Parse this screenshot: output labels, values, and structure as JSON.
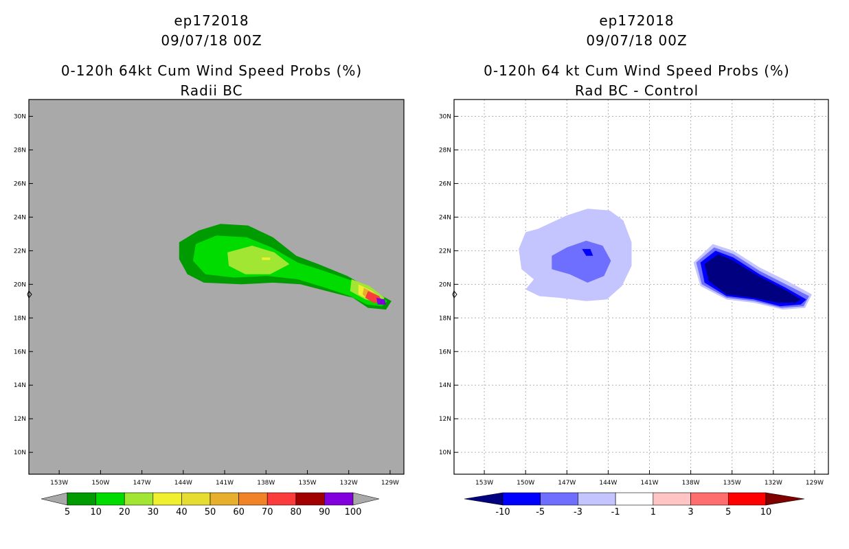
{
  "left": {
    "storm": "ep172018",
    "datetime": "09/07/18 00Z",
    "title": "0-120h 64kt Cum Wind Speed Probs (%)",
    "subtitle": "Radii BC"
  },
  "right": {
    "storm": "ep172018",
    "datetime": "09/07/18 00Z",
    "title": "0-120h 64 kt Cum Wind Speed Probs (%)",
    "subtitle": "Rad BC - Control"
  },
  "chart_data": [
    {
      "type": "heatmap",
      "name": "Radii BC",
      "x_ticks": [
        "153W",
        "150W",
        "147W",
        "144W",
        "141W",
        "138W",
        "135W",
        "132W",
        "129W"
      ],
      "x_tick_values": [
        -153,
        -150,
        -147,
        -144,
        -141,
        -138,
        -135,
        -132,
        -129
      ],
      "y_ticks": [
        "30N",
        "28N",
        "26N",
        "24N",
        "22N",
        "20N",
        "18N",
        "16N",
        "14N",
        "12N",
        "10N"
      ],
      "y_tick_values": [
        30,
        28,
        26,
        24,
        22,
        20,
        18,
        16,
        14,
        12,
        10
      ],
      "xlim": [
        -155.2,
        -128.0
      ],
      "ylim": [
        8.7,
        31.0
      ],
      "grid": false,
      "background": "#a9a9a9",
      "legend": {
        "labels": [
          "5",
          "10",
          "20",
          "30",
          "40",
          "50",
          "60",
          "70",
          "80",
          "90",
          "100"
        ],
        "colors": [
          "#009b00",
          "#00dc00",
          "#a0e632",
          "#f0f030",
          "#e6dc32",
          "#e6af2d",
          "#f08228",
          "#fa3c3c",
          "#a00000",
          "#8200dc"
        ]
      },
      "contours": [
        {
          "level": "5-10",
          "color": "#009b00",
          "points": [
            [
              -144.3,
              22.5
            ],
            [
              -142.9,
              23.2
            ],
            [
              -141.3,
              23.6
            ],
            [
              -139.3,
              23.5
            ],
            [
              -137.5,
              22.8
            ],
            [
              -135.8,
              21.7
            ],
            [
              -134.2,
              21.2
            ],
            [
              -132.1,
              20.5
            ],
            [
              -130.4,
              19.7
            ],
            [
              -128.9,
              19.0
            ],
            [
              -129.3,
              18.5
            ],
            [
              -130.6,
              18.6
            ],
            [
              -131.7,
              19.2
            ],
            [
              -133.6,
              19.6
            ],
            [
              -135.5,
              20.0
            ],
            [
              -137.5,
              20.1
            ],
            [
              -139.8,
              20.0
            ],
            [
              -142.5,
              20.1
            ],
            [
              -143.7,
              20.6
            ],
            [
              -144.3,
              21.5
            ]
          ]
        },
        {
          "level": "10-20",
          "color": "#00dc00",
          "points": [
            [
              -143.1,
              22.4
            ],
            [
              -141.6,
              22.9
            ],
            [
              -139.4,
              22.8
            ],
            [
              -137.6,
              22.2
            ],
            [
              -135.7,
              21.3
            ],
            [
              -133.8,
              20.8
            ],
            [
              -131.7,
              20.2
            ],
            [
              -130.2,
              19.5
            ],
            [
              -129.2,
              19.0
            ],
            [
              -129.6,
              18.7
            ],
            [
              -130.7,
              18.8
            ],
            [
              -131.9,
              19.3
            ],
            [
              -133.7,
              19.8
            ],
            [
              -135.7,
              20.3
            ],
            [
              -137.9,
              20.5
            ],
            [
              -140.3,
              20.4
            ],
            [
              -142.4,
              20.6
            ],
            [
              -143.3,
              21.4
            ]
          ]
        },
        {
          "level": "20-30",
          "color": "#a0e632",
          "points": [
            [
              -140.8,
              21.9
            ],
            [
              -139.0,
              22.3
            ],
            [
              -137.4,
              21.9
            ],
            [
              -136.3,
              21.2
            ],
            [
              -137.7,
              20.6
            ],
            [
              -139.5,
              20.6
            ],
            [
              -140.7,
              21.1
            ]
          ]
        },
        {
          "level": "20-30",
          "color": "#a0e632",
          "points": [
            [
              -131.8,
              20.3
            ],
            [
              -130.5,
              19.9
            ],
            [
              -129.4,
              19.2
            ],
            [
              -129.7,
              18.9
            ],
            [
              -130.8,
              19.1
            ],
            [
              -131.9,
              19.6
            ]
          ]
        },
        {
          "level": "30-40",
          "color": "#f0f030",
          "points": [
            [
              -131.3,
              20.0
            ],
            [
              -130.3,
              19.6
            ],
            [
              -129.6,
              19.1
            ],
            [
              -130.3,
              19.0
            ],
            [
              -131.3,
              19.4
            ]
          ]
        },
        {
          "level": "50-60",
          "color": "#e6af2d",
          "points": [
            [
              -130.9,
              19.8
            ],
            [
              -130.0,
              19.4
            ],
            [
              -129.8,
              19.0
            ],
            [
              -130.6,
              19.1
            ],
            [
              -131.0,
              19.4
            ]
          ]
        },
        {
          "level": "70-80",
          "color": "#fa3c3c",
          "points": [
            [
              -130.6,
              19.6
            ],
            [
              -129.8,
              19.3
            ],
            [
              -129.5,
              18.9
            ],
            [
              -130.2,
              18.9
            ],
            [
              -130.8,
              19.2
            ]
          ]
        },
        {
          "level": "90-100",
          "color": "#8200dc",
          "points": [
            [
              -130.0,
              19.2
            ],
            [
              -129.4,
              19.1
            ],
            [
              -129.3,
              18.8
            ],
            [
              -129.9,
              18.8
            ]
          ]
        },
        {
          "level": "30-40",
          "color": "#f0f030",
          "points": [
            [
              -138.3,
              21.6
            ],
            [
              -137.7,
              21.6
            ],
            [
              -137.7,
              21.45
            ],
            [
              -138.3,
              21.45
            ]
          ]
        }
      ]
    },
    {
      "type": "heatmap",
      "name": "Rad BC - Control",
      "x_ticks": [
        "153W",
        "150W",
        "147W",
        "144W",
        "141W",
        "138W",
        "135W",
        "132W",
        "129W"
      ],
      "x_tick_values": [
        -153,
        -150,
        -147,
        -144,
        -141,
        -138,
        -135,
        -132,
        -129
      ],
      "y_ticks": [
        "30N",
        "28N",
        "26N",
        "24N",
        "22N",
        "20N",
        "18N",
        "16N",
        "14N",
        "12N",
        "10N"
      ],
      "y_tick_values": [
        30,
        28,
        26,
        24,
        22,
        20,
        18,
        16,
        14,
        12,
        10
      ],
      "xlim": [
        -155.2,
        -128.0
      ],
      "ylim": [
        8.7,
        31.0
      ],
      "grid": true,
      "background": "#ffffff",
      "legend": {
        "labels": [
          "-10",
          "-5",
          "-3",
          "-1",
          "1",
          "3",
          "5",
          "10"
        ],
        "colors": [
          "#000080",
          "#0000ff",
          "#6e6eff",
          "#c4c4ff",
          "#ffffff",
          "#ffc4c4",
          "#ff6e6e",
          "#ff0000",
          "#800000"
        ]
      },
      "contours": [
        {
          "level": "-3 to -1",
          "color": "#c4c4ff",
          "points": [
            [
              -149.1,
              23.3
            ],
            [
              -147.0,
              24.1
            ],
            [
              -145.5,
              24.5
            ],
            [
              -143.9,
              24.4
            ],
            [
              -142.9,
              23.8
            ],
            [
              -142.3,
              22.5
            ],
            [
              -142.3,
              21.1
            ],
            [
              -143.0,
              19.9
            ],
            [
              -144.1,
              19.1
            ],
            [
              -145.6,
              19.0
            ],
            [
              -147.6,
              19.2
            ],
            [
              -149.0,
              19.3
            ],
            [
              -150.0,
              19.7
            ],
            [
              -149.4,
              20.3
            ],
            [
              -150.3,
              20.9
            ],
            [
              -150.5,
              22.1
            ],
            [
              -150.0,
              23.1
            ]
          ]
        },
        {
          "level": "-5 to -3",
          "color": "#6e6eff",
          "points": [
            [
              -148.1,
              21.7
            ],
            [
              -147.0,
              22.2
            ],
            [
              -145.6,
              22.6
            ],
            [
              -144.4,
              22.3
            ],
            [
              -143.8,
              21.4
            ],
            [
              -144.3,
              20.5
            ],
            [
              -145.5,
              20.1
            ],
            [
              -146.8,
              20.6
            ],
            [
              -148.1,
              20.9
            ]
          ]
        },
        {
          "level": "-10 to -5",
          "color": "#0000ff",
          "points": [
            [
              -145.9,
              22.1
            ],
            [
              -145.3,
              22.1
            ],
            [
              -145.1,
              21.7
            ],
            [
              -145.6,
              21.7
            ]
          ]
        },
        {
          "level": "-3 to -1",
          "color": "#c4c4ff",
          "points": [
            [
              -137.8,
              21.3
            ],
            [
              -136.4,
              22.4
            ],
            [
              -134.9,
              22.0
            ],
            [
              -133.0,
              21.0
            ],
            [
              -131.0,
              20.2
            ],
            [
              -129.2,
              19.4
            ],
            [
              -129.7,
              18.6
            ],
            [
              -131.3,
              18.5
            ],
            [
              -133.4,
              18.9
            ],
            [
              -135.4,
              19.1
            ],
            [
              -137.3,
              19.9
            ]
          ]
        },
        {
          "level": "-5 to -3",
          "color": "#6e6eff",
          "points": [
            [
              -137.6,
              21.3
            ],
            [
              -136.3,
              22.2
            ],
            [
              -134.9,
              21.8
            ],
            [
              -133.0,
              20.8
            ],
            [
              -131.1,
              20.0
            ],
            [
              -129.4,
              19.3
            ],
            [
              -129.8,
              18.7
            ],
            [
              -131.4,
              18.6
            ],
            [
              -133.4,
              19.0
            ],
            [
              -135.4,
              19.2
            ],
            [
              -137.2,
              20.0
            ]
          ]
        },
        {
          "level": "-10 to -5",
          "color": "#0000ff",
          "points": [
            [
              -137.3,
              21.3
            ],
            [
              -136.2,
              22.0
            ],
            [
              -134.9,
              21.6
            ],
            [
              -133.0,
              20.6
            ],
            [
              -131.1,
              19.8
            ],
            [
              -129.6,
              19.1
            ],
            [
              -130.0,
              18.8
            ],
            [
              -131.5,
              18.7
            ],
            [
              -133.4,
              19.1
            ],
            [
              -135.4,
              19.3
            ],
            [
              -137.0,
              20.1
            ]
          ]
        },
        {
          "level": "< -10",
          "color": "#000080",
          "points": [
            [
              -137.0,
              21.2
            ],
            [
              -136.0,
              21.8
            ],
            [
              -134.9,
              21.4
            ],
            [
              -133.1,
              20.5
            ],
            [
              -131.2,
              19.7
            ],
            [
              -130.0,
              19.1
            ],
            [
              -130.4,
              18.9
            ],
            [
              -131.6,
              18.9
            ],
            [
              -133.5,
              19.2
            ],
            [
              -135.4,
              19.4
            ],
            [
              -136.7,
              20.2
            ]
          ]
        }
      ]
    }
  ]
}
